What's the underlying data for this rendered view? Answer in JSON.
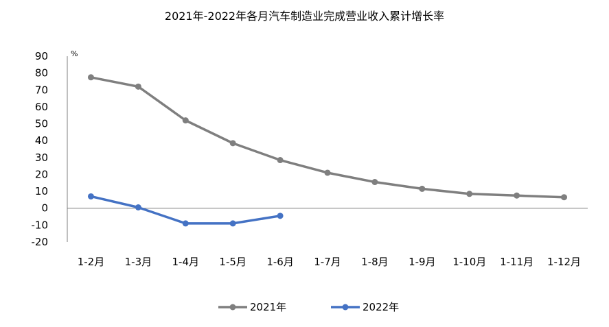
{
  "chart_data": {
    "type": "line",
    "title": "2021年-2022年各月汽车制造业完成营业收入累计增长率",
    "ylabel": "%",
    "xlabel": "",
    "categories": [
      "1-2月",
      "1-3月",
      "1-4月",
      "1-5月",
      "1-6月",
      "1-7月",
      "1-8月",
      "1-9月",
      "1-10月",
      "1-11月",
      "1-12月"
    ],
    "ylim": [
      -20,
      90
    ],
    "yticks": [
      90,
      80,
      70,
      60,
      50,
      40,
      30,
      20,
      10,
      0,
      -10,
      -20
    ],
    "grid": false,
    "legend_position": "bottom",
    "series": [
      {
        "name": "2021年",
        "color": "#7f7f7f",
        "values": [
          77.5,
          72,
          52,
          38.5,
          28.5,
          21,
          15.5,
          11.5,
          8.5,
          7.5,
          6.5
        ]
      },
      {
        "name": "2022年",
        "color": "#4472c4",
        "values": [
          7,
          0.5,
          -9,
          -9,
          -4.5,
          null,
          null,
          null,
          null,
          null,
          null
        ]
      }
    ]
  }
}
